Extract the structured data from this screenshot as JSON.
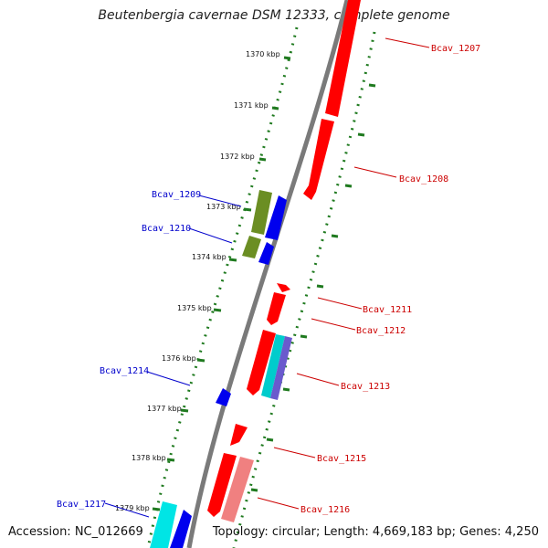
{
  "title": "Beutenbergia cavernae DSM 12333, complete genome",
  "footer": {
    "accession": "Accession: NC_012669",
    "summary": "Topology: circular; Length: 4,669,183 bp; Genes: 4,250"
  },
  "colors": {
    "backbone": "#7a7a7a",
    "tick_track": "#1f7a1f",
    "forward_label": "#cc0000",
    "reverse_label": "#0000cc",
    "red_gene": "#ff0000",
    "pink_gene": "#f08080",
    "blue_gene": "#0000ee",
    "olive_gene": "#6b8e23",
    "cyan_gene": "#00e5e5",
    "purple_gene": "#6a5acd"
  },
  "kbp_ticks": [
    "1370 kbp",
    "1371 kbp",
    "1372 kbp",
    "1373 kbp",
    "1374 kbp",
    "1375 kbp",
    "1376 kbp",
    "1377 kbp",
    "1378 kbp",
    "1379 kbp"
  ],
  "gene_labels": {
    "forward": [
      "Bcav_1207",
      "Bcav_1208",
      "Bcav_1211",
      "Bcav_1212",
      "Bcav_1213",
      "Bcav_1215",
      "Bcav_1216"
    ],
    "reverse": [
      "Bcav_1209",
      "Bcav_1210",
      "Bcav_1214",
      "Bcav_1217"
    ]
  }
}
